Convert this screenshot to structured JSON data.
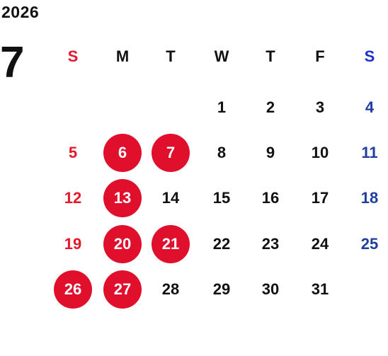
{
  "year": "2026",
  "month": "7",
  "weekdays": [
    "S",
    "M",
    "T",
    "W",
    "T",
    "F",
    "S"
  ],
  "weeks": [
    [
      "",
      "",
      "",
      "1",
      "2",
      "3",
      "4"
    ],
    [
      "5",
      "6",
      "7",
      "8",
      "9",
      "10",
      "11"
    ],
    [
      "12",
      "13",
      "14",
      "15",
      "16",
      "17",
      "18"
    ],
    [
      "19",
      "20",
      "21",
      "22",
      "23",
      "24",
      "25"
    ],
    [
      "26",
      "27",
      "28",
      "29",
      "30",
      "31",
      ""
    ]
  ],
  "highlighted_days": [
    "6",
    "7",
    "13",
    "20",
    "21",
    "26",
    "27"
  ],
  "colors": {
    "sunday": "#e4182b",
    "saturday": "#1f3ea0",
    "weekday": "#111111",
    "highlight_fill": "#e0102c",
    "highlight_text": "#ffffff"
  }
}
